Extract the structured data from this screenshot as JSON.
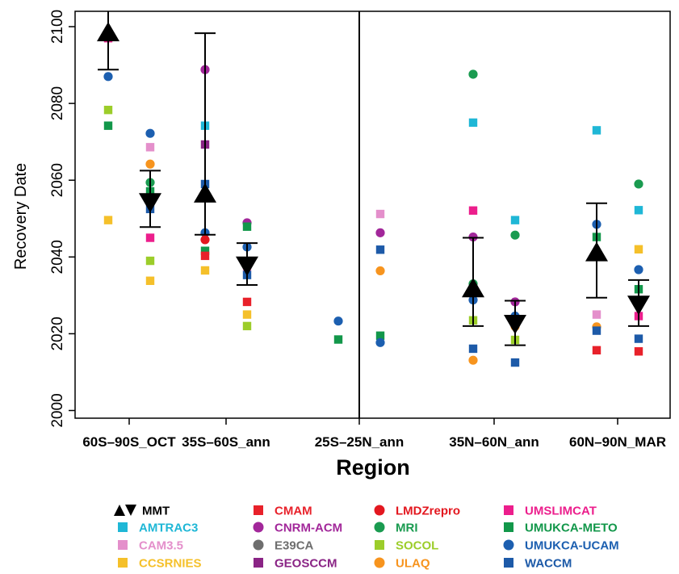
{
  "chart_data": {
    "type": "scatter",
    "xlabel": "Region",
    "ylabel": "Recovery Date",
    "ylim": [
      1998,
      2104
    ],
    "yticks": [
      2000,
      2020,
      2040,
      2060,
      2080,
      2100
    ],
    "categories": [
      "60S–90S_OCT",
      "35S–60S_ann",
      "25S–25N_ann",
      "35N–60N_ann",
      "60N–90N_MAR"
    ],
    "grid": false,
    "divider_after_category": "25S–25N_ann",
    "legend_position": "bottom",
    "legend": [
      {
        "name": "MMT",
        "color": "#000000",
        "marker": "triangles"
      },
      {
        "name": "AMTRAC3",
        "color": "#1fb7d6",
        "marker": "square"
      },
      {
        "name": "CAM3.5",
        "color": "#e48fcb",
        "marker": "square"
      },
      {
        "name": "CCSRNIES",
        "color": "#f5c02a",
        "marker": "square"
      },
      {
        "name": "CMAM",
        "color": "#e8212a",
        "marker": "square"
      },
      {
        "name": "CNRM-ACM",
        "color": "#a2279a",
        "marker": "circle"
      },
      {
        "name": "E39CA",
        "color": "#6e6e6e",
        "marker": "circle"
      },
      {
        "name": "GEOSCCM",
        "color": "#8a2485",
        "marker": "square"
      },
      {
        "name": "LMDZrepro",
        "color": "#e3171f",
        "marker": "circle"
      },
      {
        "name": "MRI",
        "color": "#1a9b50",
        "marker": "circle"
      },
      {
        "name": "SOCOL",
        "color": "#9ccd2a",
        "marker": "square"
      },
      {
        "name": "ULAQ",
        "color": "#f7941e",
        "marker": "circle"
      },
      {
        "name": "UMSLIMCAT",
        "color": "#ec1e8c",
        "marker": "square"
      },
      {
        "name": "UMUKCA-METO",
        "color": "#12974a",
        "marker": "square"
      },
      {
        "name": "UMUKCA-UCAM",
        "color": "#1c5fb0",
        "marker": "circle"
      },
      {
        "name": "WACCM",
        "color": "#1d5aa8",
        "marker": "square"
      }
    ],
    "mmt": [
      {
        "category": "60S–90S_OCT",
        "up": 2098.5,
        "up_bar": [
          2088.8,
          2106
        ],
        "down": 2054.3,
        "down_bar": [
          2047.8,
          2062.5
        ]
      },
      {
        "category": "35S–60S_ann",
        "up": 2056.5,
        "up_bar": [
          2045.8,
          2098.3
        ],
        "down": 2037.8,
        "down_bar": [
          2032.7,
          2043.6
        ]
      },
      {
        "category": "35N–60N_ann",
        "up": 2031.8,
        "up_bar": [
          2022.0,
          2045.0
        ],
        "down": 2022.6,
        "down_bar": [
          2017.0,
          2028.6
        ]
      },
      {
        "category": "60N–90N_MAR",
        "up": 2041.2,
        "up_bar": [
          2029.4,
          2054.0
        ],
        "down": 2027.6,
        "down_bar": [
          2022.0,
          2034.0
        ]
      }
    ],
    "points": [
      {
        "model": "UMSLIMCAT",
        "category": "60S–90S_OCT",
        "side": "left",
        "y": 2097.0
      },
      {
        "model": "UMUKCA-UCAM",
        "category": "60S–90S_OCT",
        "side": "left",
        "y": 2087.0
      },
      {
        "model": "SOCOL",
        "category": "60S–90S_OCT",
        "side": "left",
        "y": 2078.3
      },
      {
        "model": "UMUKCA-METO",
        "category": "60S–90S_OCT",
        "side": "left",
        "y": 2074.2
      },
      {
        "model": "CCSRNIES",
        "category": "60S–90S_OCT",
        "side": "left",
        "y": 2049.6
      },
      {
        "model": "UMUKCA-UCAM",
        "category": "60S–90S_OCT",
        "side": "right",
        "y": 2072.2
      },
      {
        "model": "CAM3.5",
        "category": "60S–90S_OCT",
        "side": "right",
        "y": 2068.6
      },
      {
        "model": "ULAQ",
        "category": "60S–90S_OCT",
        "side": "right",
        "y": 2064.2
      },
      {
        "model": "MRI",
        "category": "60S–90S_OCT",
        "side": "right",
        "y": 2059.4
      },
      {
        "model": "UMUKCA-METO",
        "category": "60S–90S_OCT",
        "side": "right",
        "y": 2057.1
      },
      {
        "model": "WACCM",
        "category": "60S–90S_OCT",
        "side": "right",
        "y": 2052.5
      },
      {
        "model": "UMSLIMCAT",
        "category": "60S–90S_OCT",
        "side": "right",
        "y": 2045.0
      },
      {
        "model": "SOCOL",
        "category": "60S–90S_OCT",
        "side": "right",
        "y": 2039.0
      },
      {
        "model": "CCSRNIES",
        "category": "60S–90S_OCT",
        "side": "right",
        "y": 2033.8
      },
      {
        "model": "CNRM-ACM",
        "category": "35S–60S_ann",
        "side": "left",
        "y": 2088.8
      },
      {
        "model": "AMTRAC3",
        "category": "35S–60S_ann",
        "side": "left",
        "y": 2074.2
      },
      {
        "model": "GEOSCCM",
        "category": "35S–60S_ann",
        "side": "left",
        "y": 2069.3
      },
      {
        "model": "WACCM",
        "category": "35S–60S_ann",
        "side": "left",
        "y": 2059.0
      },
      {
        "model": "UMUKCA-UCAM",
        "category": "35S–60S_ann",
        "side": "left",
        "y": 2046.3
      },
      {
        "model": "LMDZrepro",
        "category": "35S–60S_ann",
        "side": "left",
        "y": 2044.5
      },
      {
        "model": "UMUKCA-METO",
        "category": "35S–60S_ann",
        "side": "left",
        "y": 2041.6
      },
      {
        "model": "CMAM",
        "category": "35S–60S_ann",
        "side": "left",
        "y": 2040.3
      },
      {
        "model": "CCSRNIES",
        "category": "35S–60S_ann",
        "side": "left",
        "y": 2036.5
      },
      {
        "model": "CNRM-ACM",
        "category": "35S–60S_ann",
        "side": "right",
        "y": 2048.9
      },
      {
        "model": "UMUKCA-METO",
        "category": "35S–60S_ann",
        "side": "right",
        "y": 2047.9
      },
      {
        "model": "UMUKCA-UCAM",
        "category": "35S–60S_ann",
        "side": "right",
        "y": 2042.6
      },
      {
        "model": "CAM3.5",
        "category": "35S–60S_ann",
        "side": "right",
        "y": 2037.3
      },
      {
        "model": "WACCM",
        "category": "35S–60S_ann",
        "side": "right",
        "y": 2035.3
      },
      {
        "model": "CMAM",
        "category": "35S–60S_ann",
        "side": "right",
        "y": 2028.3
      },
      {
        "model": "CCSRNIES",
        "category": "35S–60S_ann",
        "side": "right",
        "y": 2025.0
      },
      {
        "model": "SOCOL",
        "category": "35S–60S_ann",
        "side": "right",
        "y": 2022.0
      },
      {
        "model": "UMUKCA-UCAM",
        "category": "25S–25N_ann",
        "side": "left",
        "y": 2023.3
      },
      {
        "model": "UMUKCA-METO",
        "category": "25S–25N_ann",
        "side": "left",
        "y": 2018.5
      },
      {
        "model": "CAM3.5",
        "category": "25S–25N_ann",
        "side": "right",
        "y": 2051.2
      },
      {
        "model": "CNRM-ACM",
        "category": "25S–25N_ann",
        "side": "right",
        "y": 2046.3
      },
      {
        "model": "WACCM",
        "category": "25S–25N_ann",
        "side": "right",
        "y": 2041.9
      },
      {
        "model": "ULAQ",
        "category": "25S–25N_ann",
        "side": "right",
        "y": 2036.4
      },
      {
        "model": "UMUKCA-METO",
        "category": "25S–25N_ann",
        "side": "right",
        "y": 2019.5
      },
      {
        "model": "UMUKCA-UCAM",
        "category": "25S–25N_ann",
        "side": "right",
        "y": 2017.7
      },
      {
        "model": "MRI",
        "category": "35N–60N_ann",
        "side": "left",
        "y": 2087.6
      },
      {
        "model": "AMTRAC3",
        "category": "35N–60N_ann",
        "side": "left",
        "y": 2075.0
      },
      {
        "model": "UMSLIMCAT",
        "category": "35N–60N_ann",
        "side": "left",
        "y": 2052.1
      },
      {
        "model": "CNRM-ACM",
        "category": "35N–60N_ann",
        "side": "left",
        "y": 2045.2
      },
      {
        "model": "MRI",
        "category": "35N–60N_ann",
        "side": "left",
        "y": 2033.0
      },
      {
        "model": "UMUKCA-UCAM",
        "category": "35N–60N_ann",
        "side": "left",
        "y": 2028.8
      },
      {
        "model": "SOCOL",
        "category": "35N–60N_ann",
        "side": "left",
        "y": 2023.5
      },
      {
        "model": "WACCM",
        "category": "35N–60N_ann",
        "side": "left",
        "y": 2016.1
      },
      {
        "model": "ULAQ",
        "category": "35N–60N_ann",
        "side": "left",
        "y": 2013.1
      },
      {
        "model": "AMTRAC3",
        "category": "35N–60N_ann",
        "side": "right",
        "y": 2049.6
      },
      {
        "model": "MRI",
        "category": "35N–60N_ann",
        "side": "right",
        "y": 2045.7
      },
      {
        "model": "CNRM-ACM",
        "category": "35N–60N_ann",
        "side": "right",
        "y": 2028.3
      },
      {
        "model": "UMUKCA-UCAM",
        "category": "35N–60N_ann",
        "side": "right",
        "y": 2024.6
      },
      {
        "model": "ULAQ",
        "category": "35N–60N_ann",
        "side": "right",
        "y": 2021.9
      },
      {
        "model": "SOCOL",
        "category": "35N–60N_ann",
        "side": "right",
        "y": 2018.4
      },
      {
        "model": "WACCM",
        "category": "35N–60N_ann",
        "side": "right",
        "y": 2012.5
      },
      {
        "model": "AMTRAC3",
        "category": "60N–90N_MAR",
        "side": "left",
        "y": 2073.0
      },
      {
        "model": "UMUKCA-UCAM",
        "category": "60N–90N_MAR",
        "side": "left",
        "y": 2048.5
      },
      {
        "model": "UMUKCA-METO",
        "category": "60N–90N_MAR",
        "side": "left",
        "y": 2045.2
      },
      {
        "model": "CAM3.5",
        "category": "60N–90N_MAR",
        "side": "left",
        "y": 2025.0
      },
      {
        "model": "ULAQ",
        "category": "60N–90N_MAR",
        "side": "left",
        "y": 2021.8
      },
      {
        "model": "WACCM",
        "category": "60N–90N_MAR",
        "side": "left",
        "y": 2020.8
      },
      {
        "model": "CMAM",
        "category": "60N–90N_MAR",
        "side": "left",
        "y": 2015.7
      },
      {
        "model": "MRI",
        "category": "60N–90N_MAR",
        "side": "right",
        "y": 2059.0
      },
      {
        "model": "AMTRAC3",
        "category": "60N–90N_MAR",
        "side": "right",
        "y": 2052.2
      },
      {
        "model": "CCSRNIES",
        "category": "60N–90N_MAR",
        "side": "right",
        "y": 2042.0
      },
      {
        "model": "UMUKCA-UCAM",
        "category": "60N–90N_MAR",
        "side": "right",
        "y": 2036.7
      },
      {
        "model": "UMUKCA-METO",
        "category": "60N–90N_MAR",
        "side": "right",
        "y": 2031.6
      },
      {
        "model": "CNRM-ACM",
        "category": "60N–90N_MAR",
        "side": "right",
        "y": 2028.3
      },
      {
        "model": "UMSLIMCAT",
        "category": "60N–90N_MAR",
        "side": "right",
        "y": 2024.6
      },
      {
        "model": "WACCM",
        "category": "60N–90N_MAR",
        "side": "right",
        "y": 2018.7
      },
      {
        "model": "CMAM",
        "category": "60N–90N_MAR",
        "side": "right",
        "y": 2015.4
      }
    ]
  }
}
